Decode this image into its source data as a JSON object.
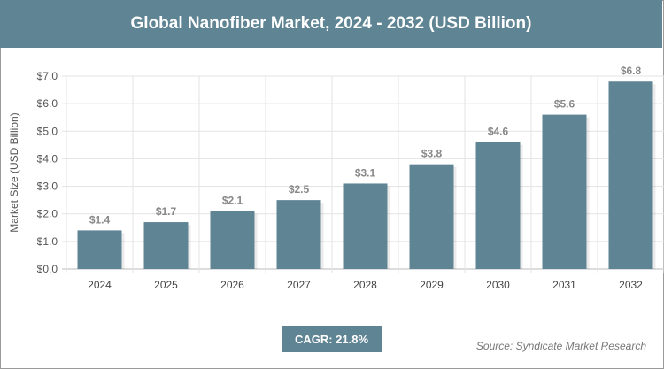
{
  "chart_data": {
    "type": "bar",
    "title": "Global Nanofiber Market, 2024 - 2032 (USD Billion)",
    "xlabel": "",
    "ylabel": "Market Size (USD Billion)",
    "categories": [
      "2024",
      "2025",
      "2026",
      "2027",
      "2028",
      "2029",
      "2030",
      "2031",
      "2032"
    ],
    "values": [
      1.4,
      1.7,
      2.1,
      2.5,
      3.1,
      3.8,
      4.6,
      5.6,
      6.8
    ],
    "data_labels": [
      "$1.4",
      "$1.7",
      "$2.1",
      "$2.5",
      "$3.1",
      "$3.8",
      "$4.6",
      "$5.6",
      "$6.8"
    ],
    "ylim": [
      0,
      7
    ],
    "yticks": [
      "$0.0",
      "$1.0",
      "$2.0",
      "$3.0",
      "$4.0",
      "$5.0",
      "$6.0",
      "$7.0"
    ],
    "grid": true,
    "bar_color": "#5f8494",
    "header_color": "#5f8494"
  },
  "footer": {
    "cagr": "CAGR: 21.8%",
    "source": "Source: Syndicate Market Research"
  }
}
